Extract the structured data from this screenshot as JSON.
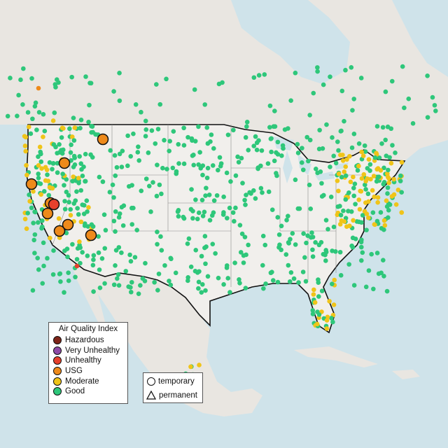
{
  "legend_aqi": {
    "title": "Air Quality Index",
    "items": [
      {
        "label": "Hazardous",
        "color": "#7e2418"
      },
      {
        "label": "Very Unhealthy",
        "color": "#8e4aa6"
      },
      {
        "label": "Unhealthy",
        "color": "#e6402c"
      },
      {
        "label": "USG",
        "color": "#ee8a1b"
      },
      {
        "label": "Moderate",
        "color": "#f0c419"
      },
      {
        "label": "Good",
        "color": "#2ec77a"
      }
    ]
  },
  "legend_type": {
    "items": [
      {
        "label": "temporary",
        "shape": "circle"
      },
      {
        "label": "permanent",
        "shape": "triangle"
      }
    ]
  },
  "colors": {
    "water": "#cfe3ea",
    "land": "#e9e6e1",
    "us_land": "#f1efec",
    "border": "#111111"
  }
}
